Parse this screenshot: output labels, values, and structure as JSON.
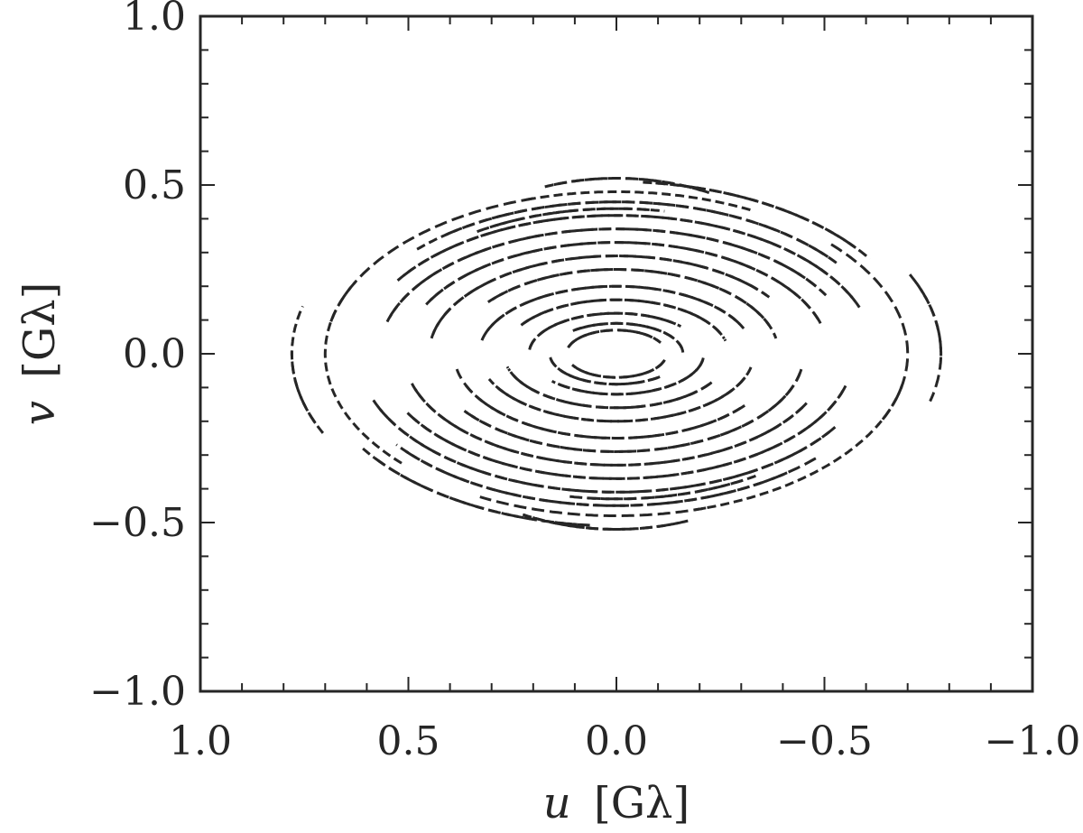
{
  "chart_data": {
    "type": "scatter",
    "title": "",
    "xlabel": {
      "var": "u",
      "unit": "[Gλ]"
    },
    "ylabel": {
      "var": "v",
      "unit": "[Gλ]"
    },
    "xlim": [
      1.0,
      -1.0
    ],
    "ylim": [
      -1.0,
      1.0
    ],
    "x_inverted": true,
    "xticks": [
      {
        "value": 1.0,
        "label": "1.0"
      },
      {
        "value": 0.5,
        "label": "0.5"
      },
      {
        "value": 0.0,
        "label": "0.0"
      },
      {
        "value": -0.5,
        "label": "−0.5"
      },
      {
        "value": -1.0,
        "label": "−1.0"
      }
    ],
    "yticks": [
      {
        "value": 1.0,
        "label": "1.0"
      },
      {
        "value": 0.5,
        "label": "0.5"
      },
      {
        "value": 0.0,
        "label": "0.0"
      },
      {
        "value": -0.5,
        "label": "−0.5"
      },
      {
        "value": -1.0,
        "label": "−1.0"
      }
    ],
    "minor_tick_step": 0.1,
    "grid": false,
    "marker_color": "#262626",
    "series": [
      {
        "arcs": [
          {
            "a": 0.12,
            "b": 0.07,
            "t0": 0.3,
            "t1": 2.6
          },
          {
            "a": 0.12,
            "b": 0.07,
            "t0": 3.4,
            "t1": 5.8
          },
          {
            "a": 0.16,
            "b": 0.09,
            "t0": 0.9,
            "t1": 3.1
          },
          {
            "a": 0.16,
            "b": 0.09,
            "t0": 4.0,
            "t1": 6.1
          },
          {
            "a": 0.21,
            "b": 0.12,
            "t0": 0.1,
            "t1": 2.4
          },
          {
            "a": 0.21,
            "b": 0.12,
            "t0": 3.3,
            "t1": 5.5
          },
          {
            "a": 0.27,
            "b": 0.16,
            "t0": 0.6,
            "t1": 2.9
          },
          {
            "a": 0.27,
            "b": 0.16,
            "t0": 3.7,
            "t1": 6.0
          },
          {
            "a": 0.33,
            "b": 0.2,
            "t0": 0.2,
            "t1": 2.7
          },
          {
            "a": 0.33,
            "b": 0.2,
            "t0": 3.5,
            "t1": 5.9
          },
          {
            "a": 0.39,
            "b": 0.25,
            "t0": 0.7,
            "t1": 2.8
          },
          {
            "a": 0.39,
            "b": 0.25,
            "t0": 3.8,
            "t1": 6.1
          },
          {
            "a": 0.45,
            "b": 0.29,
            "t0": 0.2,
            "t1": 2.5
          },
          {
            "a": 0.45,
            "b": 0.29,
            "t0": 3.3,
            "t1": 5.7
          },
          {
            "a": 0.51,
            "b": 0.33,
            "t0": 0.5,
            "t1": 2.9
          },
          {
            "a": 0.51,
            "b": 0.33,
            "t0": 3.6,
            "t1": 6.0
          },
          {
            "a": 0.57,
            "b": 0.37,
            "t0": 0.3,
            "t1": 2.6
          },
          {
            "a": 0.57,
            "b": 0.37,
            "t0": 3.4,
            "t1": 5.8
          },
          {
            "a": 0.62,
            "b": 0.41,
            "t0": 0.6,
            "t1": 2.8
          },
          {
            "a": 0.62,
            "b": 0.41,
            "t0": 3.7,
            "t1": 5.9
          },
          {
            "a": 0.66,
            "b": 0.45,
            "t0": 0.9,
            "t1": 2.5
          },
          {
            "a": 0.66,
            "b": 0.45,
            "t0": 3.9,
            "t1": 5.6
          },
          {
            "a": 0.7,
            "b": 0.48,
            "t0": 0.2,
            "t1": 1.3
          },
          {
            "a": 0.7,
            "b": 0.48,
            "t0": 2.4,
            "t1": 3.6
          },
          {
            "a": 0.7,
            "b": 0.48,
            "t0": 4.4,
            "t1": 5.2
          },
          {
            "a": 0.73,
            "b": 0.51,
            "t0": 1.7,
            "t1": 2.5
          },
          {
            "a": 0.73,
            "b": 0.51,
            "t0": 4.8,
            "t1": 5.7
          },
          {
            "a": 0.78,
            "b": 0.55,
            "t0": 2.7,
            "t1": 3.4
          },
          {
            "a": 0.78,
            "b": 0.55,
            "t0": 5.9,
            "t1": 6.3
          },
          {
            "a": 0.62,
            "b": 0.43,
            "t0": 1.0,
            "t1": 1.7
          },
          {
            "a": 0.62,
            "b": 0.43,
            "t0": 4.2,
            "t1": 4.9
          },
          {
            "a": 0.56,
            "b": 0.52,
            "t0": 1.3,
            "t1": 2.0
          },
          {
            "a": 0.56,
            "b": 0.52,
            "t0": 4.4,
            "t1": 5.1
          }
        ]
      }
    ]
  }
}
